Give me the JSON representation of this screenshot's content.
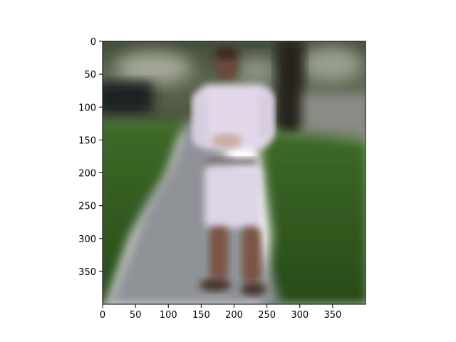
{
  "chart_data": {
    "type": "image",
    "title": "",
    "xlabel": "",
    "ylabel": "",
    "xlim": [
      0,
      400
    ],
    "ylim": [
      400,
      0
    ],
    "y_axis_inverted": true,
    "grid": false,
    "x_ticks": [
      0,
      50,
      100,
      150,
      200,
      250,
      300,
      350
    ],
    "y_ticks": [
      0,
      50,
      100,
      150,
      200,
      250,
      300,
      350
    ],
    "x_tick_labels": [
      "0",
      "50",
      "100",
      "150",
      "200",
      "250",
      "300",
      "350"
    ],
    "y_tick_labels": [
      "0",
      "50",
      "100",
      "150",
      "200",
      "250",
      "300",
      "350"
    ],
    "image_content": "blurred photo: person in white shirt and white shorts standing on a concrete sidewalk between green lawns, trees and parked car in background",
    "colors": {
      "grass": "#2f5a1e",
      "sidewalk": "#8f9297",
      "shirt": "#e2d8ea",
      "background_foliage": "#3d4a30",
      "axis": "#000000"
    }
  }
}
